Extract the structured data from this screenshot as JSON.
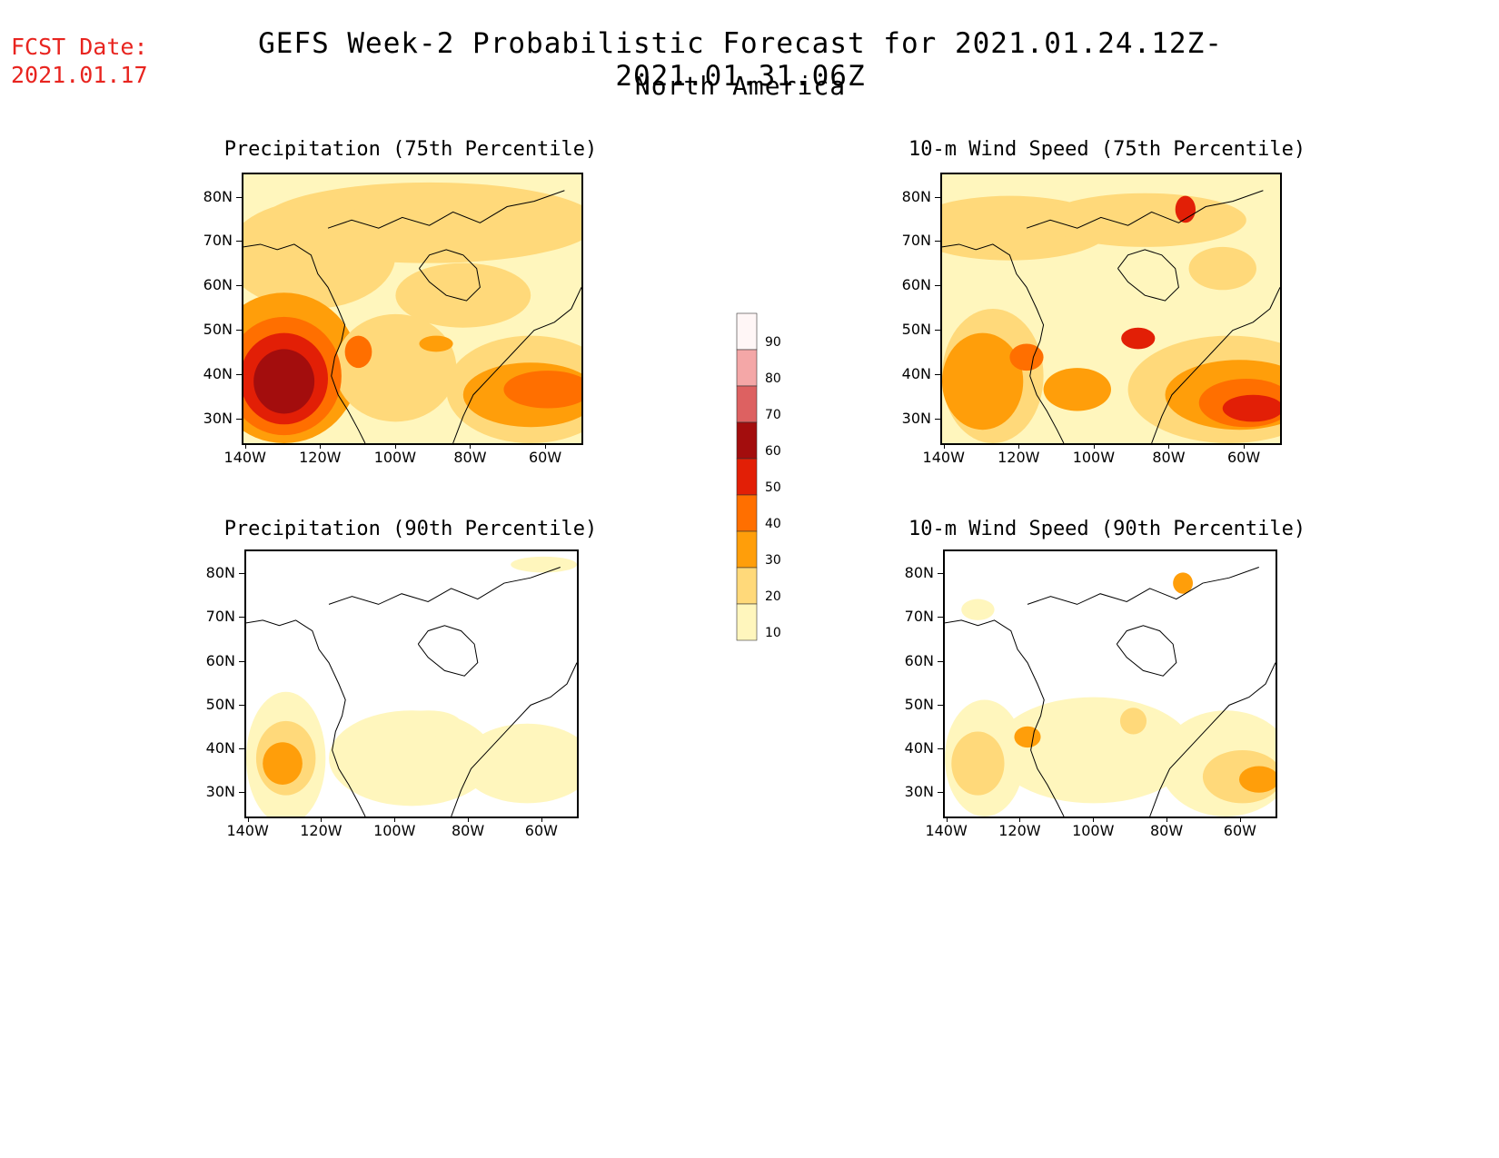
{
  "header": {
    "fcst_label": "FCST Date:",
    "fcst_date": "2021.01.17",
    "title": "GEFS Week-2 Probabilistic Forecast for 2021.01.24.12Z-2021.01.31.06Z",
    "subtitle": "North America"
  },
  "axes": {
    "lat_labels": [
      "80N",
      "70N",
      "60N",
      "50N",
      "40N",
      "30N"
    ],
    "lon_labels": [
      "140W",
      "120W",
      "100W",
      "80W",
      "60W"
    ]
  },
  "panels": [
    {
      "id": "p1",
      "title": "Precipitation (75th Percentile)"
    },
    {
      "id": "p2",
      "title": "10-m Wind Speed (75th Percentile)"
    },
    {
      "id": "p3",
      "title": "Precipitation (90th Percentile)"
    },
    {
      "id": "p4",
      "title": "10-m Wind Speed (90th Percentile)"
    }
  ],
  "colorbar": {
    "levels": [
      "90",
      "80",
      "70",
      "60",
      "50",
      "40",
      "30",
      "20",
      "10"
    ],
    "colors": [
      "#fff6f6",
      "#f4a7a7",
      "#dd6161",
      "#a30d0d",
      "#e21f06",
      "#ff6f00",
      "#ff9e0a",
      "#ffd97a",
      "#fff6bd"
    ]
  }
}
